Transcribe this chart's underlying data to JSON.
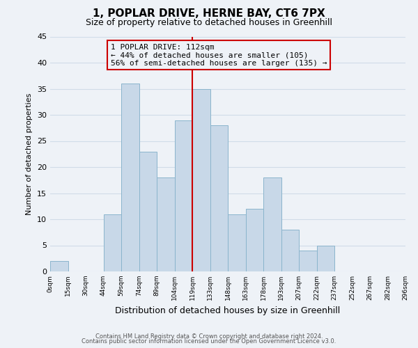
{
  "title": "1, POPLAR DRIVE, HERNE BAY, CT6 7PX",
  "subtitle": "Size of property relative to detached houses in Greenhill",
  "xlabel": "Distribution of detached houses by size in Greenhill",
  "ylabel": "Number of detached properties",
  "bar_color": "#c8d8e8",
  "bar_edge_color": "#8ab4cc",
  "grid_color": "#d0dce8",
  "annotation_box_color": "#cc0000",
  "annotation_line_color": "#cc0000",
  "bin_labels": [
    "0sqm",
    "15sqm",
    "30sqm",
    "44sqm",
    "59sqm",
    "74sqm",
    "89sqm",
    "104sqm",
    "119sqm",
    "133sqm",
    "148sqm",
    "163sqm",
    "178sqm",
    "193sqm",
    "207sqm",
    "222sqm",
    "237sqm",
    "252sqm",
    "267sqm",
    "282sqm",
    "296sqm"
  ],
  "bar_heights": [
    2,
    0,
    0,
    11,
    36,
    23,
    18,
    29,
    35,
    28,
    11,
    12,
    18,
    8,
    4,
    5,
    0,
    0,
    0,
    0
  ],
  "ylim": [
    0,
    45
  ],
  "yticks": [
    0,
    5,
    10,
    15,
    20,
    25,
    30,
    35,
    40,
    45
  ],
  "annotation_text_line1": "1 POPLAR DRIVE: 112sqm",
  "annotation_text_line2": "← 44% of detached houses are smaller (105)",
  "annotation_text_line3": "56% of semi-detached houses are larger (135) →",
  "property_line_x": 8,
  "footer_line1": "Contains HM Land Registry data © Crown copyright and database right 2024.",
  "footer_line2": "Contains public sector information licensed under the Open Government Licence v3.0.",
  "background_color": "#eef2f7",
  "title_fontsize": 11,
  "subtitle_fontsize": 9,
  "ylabel_fontsize": 8,
  "xlabel_fontsize": 9,
  "ytick_fontsize": 8,
  "xtick_fontsize": 6.5,
  "annotation_fontsize": 8,
  "footer_fontsize": 6
}
